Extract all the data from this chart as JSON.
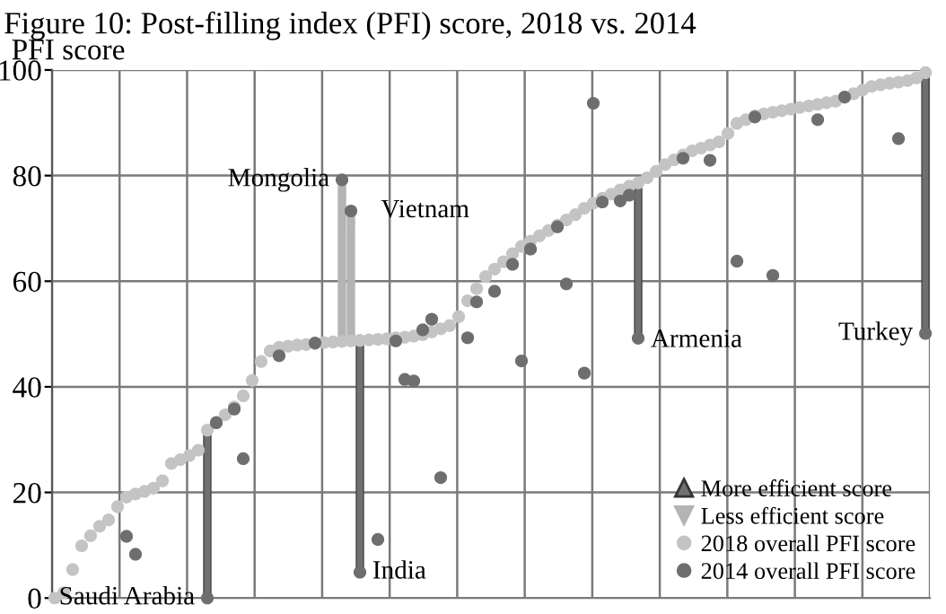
{
  "chart_data": {
    "type": "scatter",
    "title": "Figure 10: Post-filling index (PFI) score, 2018 vs. 2014",
    "ylabel": "PFI score",
    "categories": [
      null,
      null,
      null,
      null,
      null,
      null,
      null,
      null,
      null,
      null,
      null,
      null,
      null,
      null,
      null,
      null,
      null,
      null,
      null,
      null,
      null,
      null,
      null,
      null,
      null,
      null,
      null,
      null,
      null,
      null,
      null,
      null,
      null,
      null,
      null,
      null,
      null,
      null,
      null,
      null,
      null,
      null,
      null,
      null,
      null,
      null,
      null,
      null,
      null,
      null,
      null,
      null,
      null,
      null,
      null,
      null,
      null,
      null,
      null,
      null,
      null,
      null,
      null,
      null,
      null,
      null,
      null,
      null,
      null,
      null,
      null,
      null,
      null,
      null,
      null,
      null,
      null,
      null,
      null,
      null,
      null,
      null,
      null,
      null,
      null,
      null,
      null,
      null,
      null,
      null,
      null,
      null,
      null,
      null,
      null,
      null,
      null,
      null
    ],
    "ylim": [
      0,
      100
    ],
    "yticks": [
      0,
      20,
      40,
      60,
      80,
      100
    ],
    "tick_labels": "y",
    "grid": true,
    "legend": "bottom right",
    "marker": "circle",
    "series": [
      {
        "name": "2018 overall PFI score",
        "color": "#c4c4c4",
        "values": [
          0,
          1,
          5.4,
          9.9,
          11.8,
          13.6,
          14.8,
          17.3,
          19.1,
          19.7,
          20.2,
          20.8,
          22.2,
          25.5,
          26.2,
          27,
          28,
          31.8,
          33.3,
          34.7,
          36.2,
          38.3,
          41.2,
          44.8,
          46.8,
          47.5,
          47.7,
          47.9,
          48,
          48.2,
          48.4,
          48.5,
          48.6,
          48.7,
          48.8,
          48.9,
          49,
          49.1,
          49.3,
          49.4,
          49.6,
          49.9,
          50.4,
          51,
          51.6,
          53.3,
          56.3,
          58.6,
          60.9,
          62.3,
          63.7,
          65.2,
          66.6,
          67.6,
          68.6,
          69.6,
          70.6,
          71.6,
          72.6,
          73.8,
          74.8,
          75.7,
          76.5,
          77.3,
          78,
          78.6,
          79.6,
          80.8,
          82.1,
          83,
          83.9,
          84.7,
          85.2,
          85.8,
          86.4,
          88,
          89.9,
          90.6,
          91.3,
          91.7,
          92,
          92.3,
          92.6,
          92.9,
          93.2,
          93.5,
          93.8,
          94.1,
          94.8,
          95.5,
          96.2,
          96.9,
          97.2,
          97.5,
          97.7,
          98,
          98.5,
          99.5
        ]
      },
      {
        "name": "2014 overall PFI score",
        "color": "#6e6e6e",
        "values": [
          null,
          null,
          null,
          null,
          null,
          null,
          null,
          null,
          11.7,
          8.3,
          null,
          null,
          null,
          null,
          null,
          null,
          null,
          0,
          33.2,
          null,
          35.8,
          26.4,
          null,
          null,
          null,
          45.9,
          null,
          null,
          null,
          48.3,
          null,
          null,
          79.2,
          73.3,
          4.9,
          null,
          11.1,
          null,
          48.7,
          41.4,
          41.1,
          50.8,
          52.8,
          22.8,
          null,
          null,
          49.3,
          56.1,
          null,
          58.1,
          null,
          63.2,
          44.9,
          66.1,
          null,
          null,
          70.3,
          59.5,
          null,
          42.6,
          93.7,
          75,
          null,
          75.2,
          76.3,
          49.2,
          null,
          null,
          null,
          null,
          83.3,
          null,
          null,
          82.9,
          null,
          null,
          63.8,
          null,
          91.1,
          null,
          61.1,
          null,
          null,
          null,
          null,
          90.6,
          null,
          null,
          94.9,
          null,
          null,
          null,
          null,
          null,
          87,
          null,
          null,
          50.1
        ]
      },
      {
        "name": "More efficient score",
        "type": "bar",
        "color": "#707070",
        "base": [
          null,
          null,
          null,
          null,
          null,
          null,
          null,
          null,
          null,
          null,
          null,
          null,
          null,
          null,
          null,
          null,
          null,
          0,
          null,
          null,
          null,
          null,
          null,
          null,
          null,
          null,
          null,
          null,
          null,
          null,
          null,
          null,
          null,
          null,
          4.9,
          null,
          null,
          null,
          null,
          null,
          null,
          null,
          null,
          null,
          null,
          null,
          null,
          null,
          null,
          null,
          null,
          null,
          null,
          null,
          null,
          null,
          null,
          null,
          null,
          null,
          null,
          null,
          null,
          null,
          null,
          49.2,
          null,
          null,
          null,
          null,
          null,
          null,
          null,
          null,
          null,
          null,
          null,
          null,
          null,
          null,
          null,
          null,
          null,
          null,
          null,
          null,
          null,
          null,
          null,
          null,
          null,
          null,
          null,
          null,
          null,
          null,
          null,
          50.1
        ],
        "values": [
          null,
          null,
          null,
          null,
          null,
          null,
          null,
          null,
          null,
          null,
          null,
          null,
          null,
          null,
          null,
          null,
          null,
          31.8,
          null,
          null,
          null,
          null,
          null,
          null,
          null,
          null,
          null,
          null,
          null,
          null,
          null,
          null,
          null,
          null,
          43.9,
          null,
          null,
          null,
          null,
          null,
          null,
          null,
          null,
          null,
          null,
          null,
          null,
          null,
          null,
          null,
          null,
          null,
          null,
          null,
          null,
          null,
          null,
          null,
          null,
          null,
          null,
          null,
          null,
          null,
          null,
          29.4,
          null,
          null,
          null,
          null,
          null,
          null,
          null,
          null,
          null,
          null,
          null,
          null,
          null,
          null,
          null,
          null,
          null,
          null,
          null,
          null,
          null,
          null,
          null,
          null,
          null,
          null,
          null,
          null,
          null,
          null,
          null,
          49.4
        ]
      },
      {
        "name": "Less efficient score",
        "type": "bar",
        "color": "#b4b4b4",
        "base": [
          null,
          null,
          null,
          null,
          null,
          null,
          null,
          null,
          null,
          null,
          null,
          null,
          null,
          null,
          null,
          null,
          null,
          null,
          null,
          null,
          null,
          null,
          null,
          null,
          null,
          null,
          null,
          null,
          null,
          null,
          null,
          null,
          79.2,
          73.3,
          null,
          null,
          null,
          null,
          null,
          null,
          null,
          null,
          null,
          null,
          null,
          null,
          null,
          null,
          null,
          null,
          null,
          null,
          null,
          null,
          null,
          null,
          null,
          null,
          null,
          null,
          null,
          null,
          null,
          null,
          null,
          null,
          null,
          null,
          null,
          null,
          null,
          null,
          null,
          null,
          null,
          null,
          null,
          null,
          null,
          null,
          null,
          null,
          null,
          null,
          null,
          null,
          null,
          null,
          null,
          null,
          null,
          null,
          null,
          null,
          null,
          null,
          null,
          null
        ],
        "values": [
          null,
          null,
          null,
          null,
          null,
          null,
          null,
          null,
          null,
          null,
          null,
          null,
          null,
          null,
          null,
          null,
          null,
          null,
          null,
          null,
          null,
          null,
          null,
          null,
          null,
          null,
          null,
          null,
          null,
          null,
          null,
          null,
          -30.6,
          -24.6,
          null,
          null,
          null,
          null,
          null,
          null,
          null,
          null,
          null,
          null,
          null,
          null,
          null,
          null,
          null,
          null,
          null,
          null,
          null,
          null,
          null,
          null,
          null,
          null,
          null,
          null,
          null,
          null,
          null,
          null,
          null,
          null,
          null,
          null,
          null,
          null,
          null,
          null,
          null,
          null,
          null,
          null,
          null,
          null,
          null,
          null,
          null,
          null,
          null,
          null,
          null,
          null,
          null,
          null,
          null,
          null,
          null,
          null,
          null,
          null,
          null,
          null,
          null,
          null
        ]
      }
    ],
    "annotations": [
      "Saudi Arabia",
      "India",
      "Armenia",
      "Turkey",
      "Mongolia",
      "Vietnam"
    ]
  }
}
